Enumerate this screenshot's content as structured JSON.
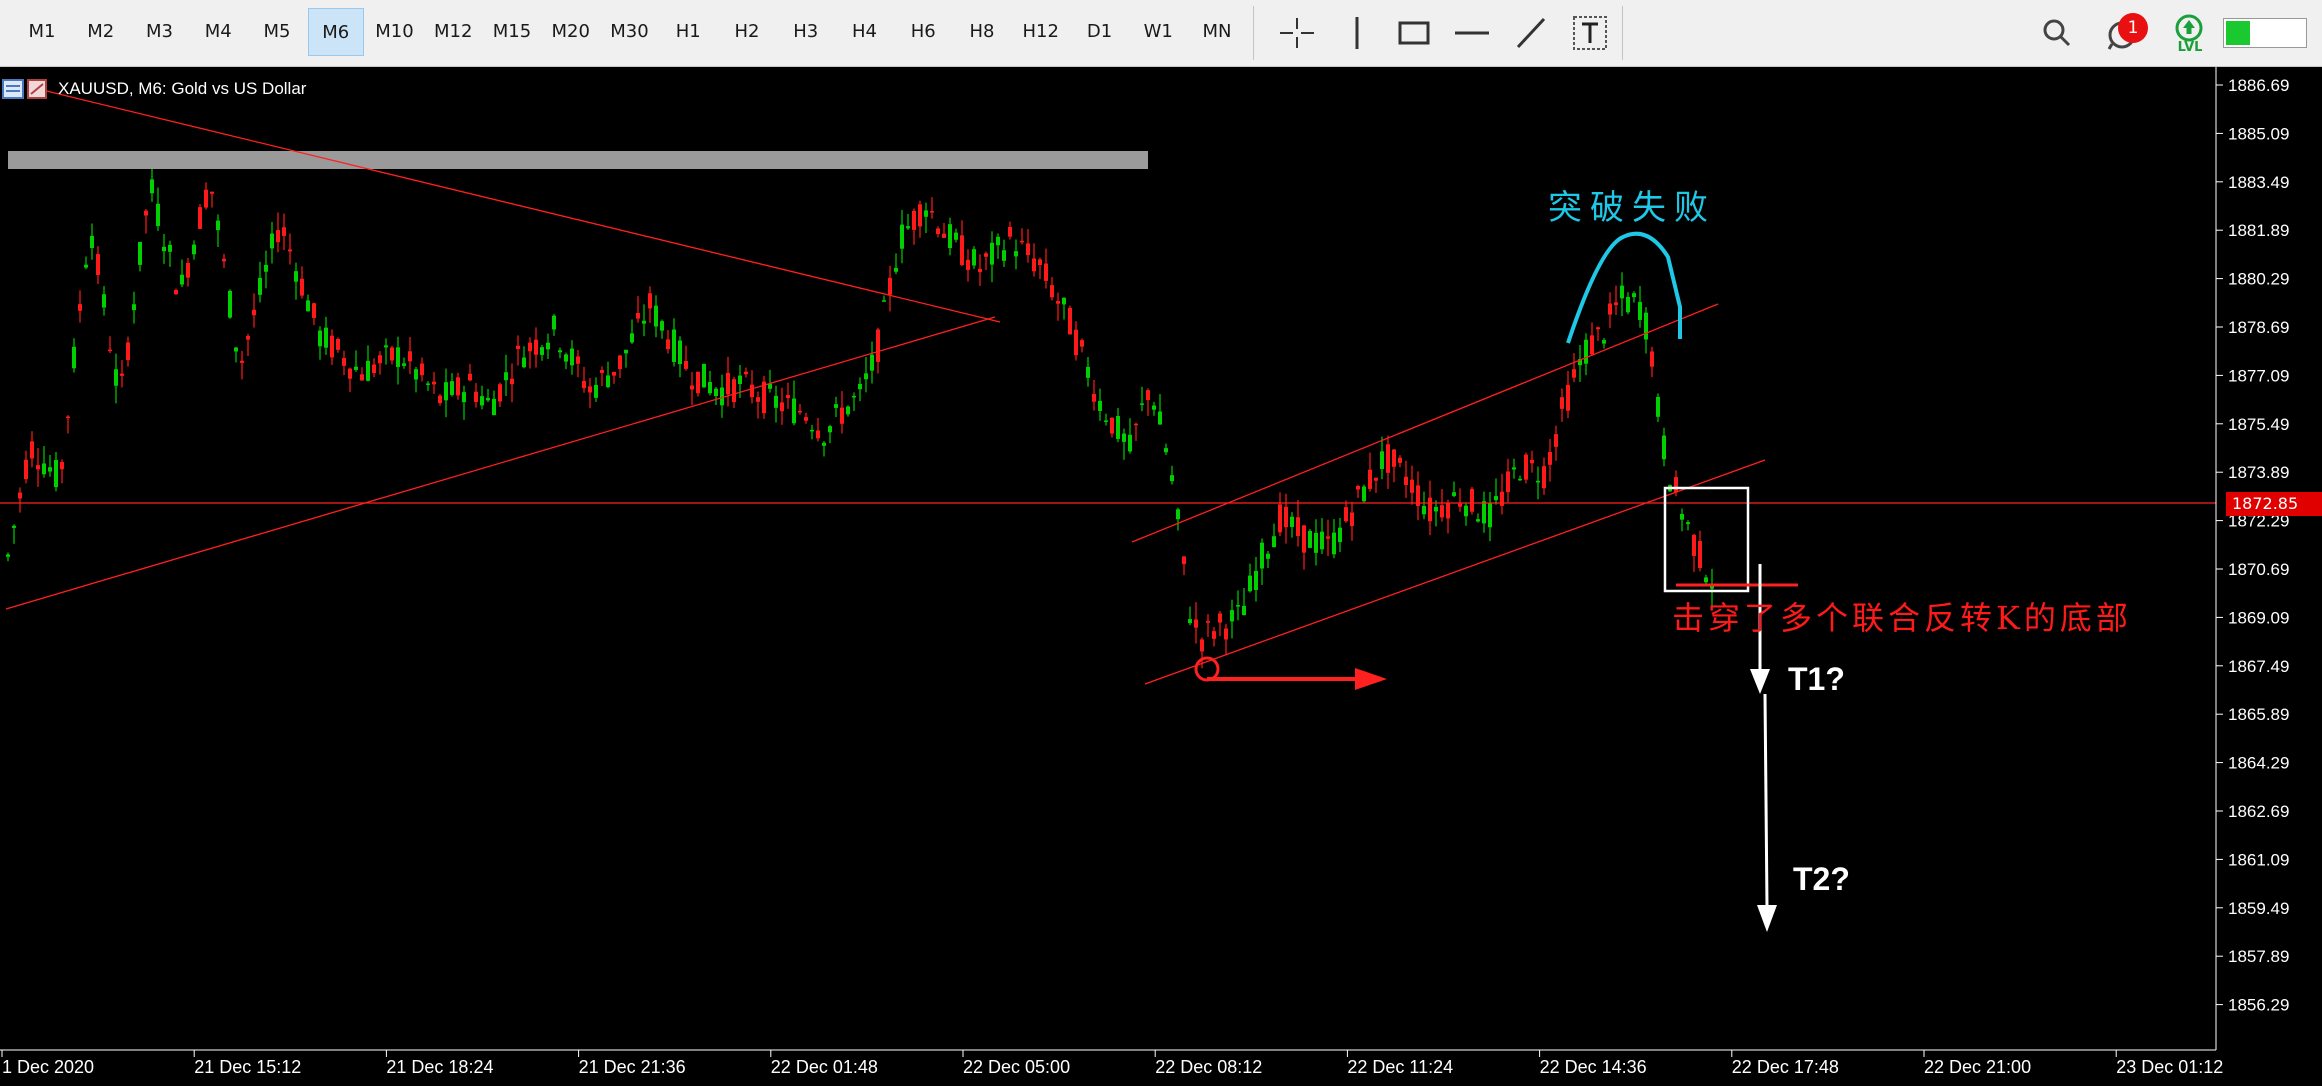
{
  "toolbar": {
    "timeframes": [
      "M1",
      "M2",
      "M3",
      "M4",
      "M5",
      "M6",
      "M10",
      "M12",
      "M15",
      "M20",
      "M30",
      "H1",
      "H2",
      "H3",
      "H4",
      "H6",
      "H8",
      "H12",
      "D1",
      "W1",
      "MN"
    ],
    "active_timeframe": "M6",
    "tools": [
      "crosshair-icon",
      "vertical-line-icon",
      "rectangle-icon",
      "horizontal-line-icon",
      "trendline-icon",
      "text-tool-icon"
    ],
    "notification_count": "1",
    "lvl_label": "LVL"
  },
  "chart": {
    "symbol_line": "XAUUSD, M6:  Gold vs US Dollar",
    "current_price": "1872.85",
    "price_labels": [
      "1886.69",
      "1885.09",
      "1883.49",
      "1881.89",
      "1880.29",
      "1878.69",
      "1877.09",
      "1875.49",
      "1873.89",
      "1872.29",
      "1870.69",
      "1869.09",
      "1867.49",
      "1865.89",
      "1864.29",
      "1862.69",
      "1861.09",
      "1859.49",
      "1857.89",
      "1856.29"
    ],
    "time_labels": [
      "1 Dec 2020",
      "21 Dec 15:12",
      "21 Dec 18:24",
      "21 Dec 21:36",
      "22 Dec 01:48",
      "22 Dec 05:00",
      "22 Dec 08:12",
      "22 Dec 11:24",
      "22 Dec 14:36",
      "22 Dec 17:48",
      "22 Dec 21:00",
      "23 Dec 01:12"
    ],
    "annotations": {
      "breakout_failed": "突破失败",
      "pierced_bottom": "击穿了多个联合反转K的底部",
      "target1": "T1?",
      "target2": "T2?"
    },
    "colors": {
      "bull": "#00d000",
      "bear": "#ff1a1a",
      "line": "#ff2020",
      "cyan": "#1ec8e6",
      "resistance_band": "#9a9a9a"
    }
  }
}
